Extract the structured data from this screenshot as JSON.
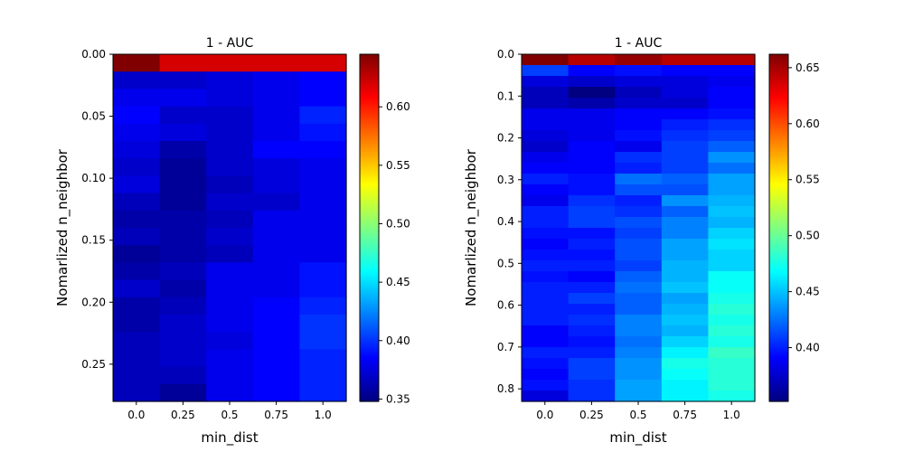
{
  "chart_data": [
    {
      "type": "heatmap",
      "title": "1 - AUC",
      "xlabel": "min_dist",
      "ylabel": "Nomarlized n_neighbor",
      "x_categories": [
        "0.0",
        "0.25",
        "0.5",
        "0.75",
        "1.0"
      ],
      "y_range": [
        0.0,
        0.28
      ],
      "y_ticks": [
        "0.00",
        "0.05",
        "0.10",
        "0.15",
        "0.20",
        "0.25"
      ],
      "y_tick_values": [
        0.0,
        0.05,
        0.1,
        0.15,
        0.2,
        0.25
      ],
      "colormap": "jet",
      "color_range": [
        0.348,
        0.645
      ],
      "colorbar_ticks": [
        "0.35",
        "0.40",
        "0.45",
        "0.50",
        "0.55",
        "0.60"
      ],
      "colorbar_tick_values": [
        0.35,
        0.4,
        0.45,
        0.5,
        0.55,
        0.6
      ],
      "values": [
        [
          0.645,
          0.62,
          0.62,
          0.62,
          0.62
        ],
        [
          0.37,
          0.37,
          0.375,
          0.38,
          0.385
        ],
        [
          0.38,
          0.38,
          0.375,
          0.38,
          0.385
        ],
        [
          0.385,
          0.37,
          0.37,
          0.38,
          0.395
        ],
        [
          0.38,
          0.375,
          0.37,
          0.38,
          0.39
        ],
        [
          0.375,
          0.36,
          0.37,
          0.385,
          0.385
        ],
        [
          0.37,
          0.355,
          0.37,
          0.375,
          0.38
        ],
        [
          0.375,
          0.355,
          0.365,
          0.375,
          0.38
        ],
        [
          0.365,
          0.355,
          0.37,
          0.37,
          0.38
        ],
        [
          0.36,
          0.36,
          0.365,
          0.38,
          0.38
        ],
        [
          0.365,
          0.36,
          0.37,
          0.38,
          0.38
        ],
        [
          0.355,
          0.36,
          0.365,
          0.38,
          0.38
        ],
        [
          0.36,
          0.365,
          0.38,
          0.38,
          0.39
        ],
        [
          0.37,
          0.36,
          0.38,
          0.38,
          0.39
        ],
        [
          0.36,
          0.365,
          0.38,
          0.385,
          0.395
        ],
        [
          0.36,
          0.37,
          0.38,
          0.385,
          0.4
        ],
        [
          0.365,
          0.37,
          0.375,
          0.385,
          0.4
        ],
        [
          0.365,
          0.37,
          0.38,
          0.385,
          0.395
        ],
        [
          0.365,
          0.365,
          0.38,
          0.385,
          0.395
        ],
        [
          0.365,
          0.355,
          0.38,
          0.385,
          0.395
        ]
      ]
    },
    {
      "type": "heatmap",
      "title": "1 - AUC",
      "xlabel": "min_dist",
      "ylabel": "Nomarlized n_neighbor",
      "x_categories": [
        "0.0",
        "0.25",
        "0.5",
        "0.75",
        "1.0"
      ],
      "y_range": [
        0.0,
        0.83
      ],
      "y_ticks": [
        "0.0",
        "0.1",
        "0.2",
        "0.3",
        "0.4",
        "0.5",
        "0.6",
        "0.7",
        "0.8"
      ],
      "y_tick_values": [
        0.0,
        0.1,
        0.2,
        0.3,
        0.4,
        0.5,
        0.6,
        0.7,
        0.8
      ],
      "colormap": "jet",
      "color_range": [
        0.352,
        0.662
      ],
      "colorbar_ticks": [
        "0.40",
        "0.45",
        "0.50",
        "0.55",
        "0.60",
        "0.65"
      ],
      "colorbar_tick_values": [
        0.4,
        0.45,
        0.5,
        0.55,
        0.6,
        0.65
      ],
      "values": [
        [
          0.662,
          0.645,
          0.655,
          0.645,
          0.645
        ],
        [
          0.41,
          0.39,
          0.395,
          0.39,
          0.39
        ],
        [
          0.38,
          0.375,
          0.38,
          0.38,
          0.385
        ],
        [
          0.37,
          0.352,
          0.37,
          0.38,
          0.39
        ],
        [
          0.37,
          0.365,
          0.375,
          0.375,
          0.39
        ],
        [
          0.385,
          0.385,
          0.39,
          0.39,
          0.395
        ],
        [
          0.385,
          0.385,
          0.39,
          0.4,
          0.405
        ],
        [
          0.38,
          0.385,
          0.395,
          0.405,
          0.41
        ],
        [
          0.375,
          0.39,
          0.385,
          0.41,
          0.42
        ],
        [
          0.385,
          0.39,
          0.405,
          0.41,
          0.435
        ],
        [
          0.39,
          0.39,
          0.4,
          0.41,
          0.425
        ],
        [
          0.4,
          0.395,
          0.425,
          0.42,
          0.44
        ],
        [
          0.39,
          0.395,
          0.415,
          0.415,
          0.44
        ],
        [
          0.385,
          0.405,
          0.4,
          0.435,
          0.445
        ],
        [
          0.4,
          0.41,
          0.405,
          0.42,
          0.45
        ],
        [
          0.4,
          0.41,
          0.415,
          0.43,
          0.445
        ],
        [
          0.395,
          0.395,
          0.41,
          0.43,
          0.455
        ],
        [
          0.39,
          0.4,
          0.415,
          0.44,
          0.46
        ],
        [
          0.395,
          0.395,
          0.415,
          0.44,
          0.455
        ],
        [
          0.4,
          0.4,
          0.41,
          0.445,
          0.455
        ],
        [
          0.395,
          0.39,
          0.42,
          0.445,
          0.47
        ],
        [
          0.4,
          0.4,
          0.425,
          0.45,
          0.47
        ],
        [
          0.4,
          0.41,
          0.42,
          0.44,
          0.475
        ],
        [
          0.4,
          0.4,
          0.42,
          0.445,
          0.48
        ],
        [
          0.4,
          0.405,
          0.43,
          0.45,
          0.475
        ],
        [
          0.39,
          0.4,
          0.43,
          0.445,
          0.48
        ],
        [
          0.39,
          0.395,
          0.425,
          0.455,
          0.475
        ],
        [
          0.4,
          0.4,
          0.43,
          0.465,
          0.485
        ],
        [
          0.395,
          0.41,
          0.435,
          0.475,
          0.48
        ],
        [
          0.39,
          0.41,
          0.435,
          0.47,
          0.48
        ],
        [
          0.395,
          0.405,
          0.44,
          0.465,
          0.48
        ],
        [
          0.38,
          0.405,
          0.44,
          0.465,
          0.475
        ]
      ]
    }
  ]
}
